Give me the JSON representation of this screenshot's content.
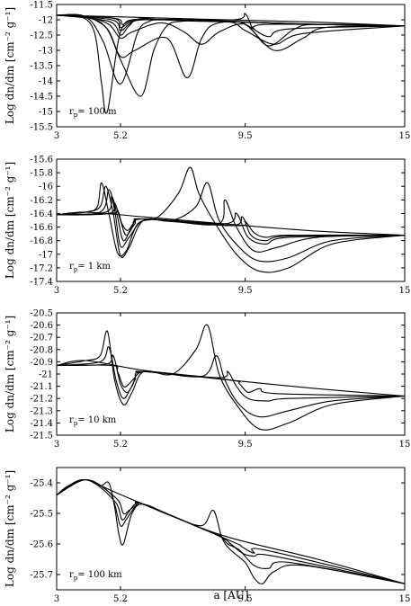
{
  "figure": {
    "xlabel": "a [AU]"
  },
  "chart_data": [
    {
      "type": "line",
      "panel": "rp-100m",
      "ylabel": "Log dn/dm [cm⁻² g⁻¹]",
      "annotation": "r_p= 100 m",
      "annotation_main": "r",
      "annotation_sub": "p",
      "annotation_rest": "= 100 m",
      "xscale": "linear",
      "xlim": [
        3,
        15
      ],
      "xticks": [
        3,
        5.2,
        9.5,
        15
      ],
      "xtick_labels": [
        "3",
        "5.2",
        "9.5",
        "15"
      ],
      "ylim": [
        -15.5,
        -11.5
      ],
      "yticks": [
        -11.5,
        -12,
        -12.5,
        -13,
        -13.5,
        -14,
        -14.5,
        -15,
        -15.5
      ],
      "ytick_labels": [
        "-11.5",
        "-12",
        "-12.5",
        "-13",
        "-13.5",
        "-14",
        "-14.5",
        "-15",
        "-15.5"
      ],
      "baseline": [
        [
          3,
          -11.85
        ],
        [
          5,
          -11.9
        ],
        [
          8,
          -11.98
        ],
        [
          12,
          -12.08
        ],
        [
          15,
          -12.2
        ]
      ],
      "series": [
        {
          "x": [
            3,
            3.8,
            4.3,
            4.55,
            4.75,
            5.2,
            5.8,
            6.6,
            7.3,
            8.6,
            10.3,
            12,
            15
          ],
          "y": [
            -11.85,
            -11.88,
            -12.4,
            -14.1,
            -15.0,
            -12.4,
            -11.98,
            -12.0,
            -12.02,
            -12.05,
            -12.1,
            -12.15,
            -12.2
          ]
        },
        {
          "x": [
            3,
            4.0,
            4.6,
            5.2,
            5.8,
            6.2,
            6.6,
            7.3,
            8.6,
            10.3,
            12,
            15
          ],
          "y": [
            -11.85,
            -11.9,
            -12.7,
            -14.1,
            -12.4,
            -12.05,
            -12.0,
            -12.02,
            -12.05,
            -12.1,
            -12.15,
            -12.2
          ]
        },
        {
          "x": [
            3,
            4.0,
            4.7,
            5.2,
            5.9,
            6.35,
            6.8,
            7.3,
            8.0,
            10.3,
            12,
            15
          ],
          "y": [
            -11.85,
            -11.9,
            -12.25,
            -13.3,
            -14.5,
            -13.0,
            -12.2,
            -12.05,
            -12.05,
            -12.1,
            -12.15,
            -12.2
          ]
        },
        {
          "x": [
            3,
            4.0,
            4.75,
            5.2,
            5.7,
            6.8,
            7.5,
            8.0,
            8.6,
            10.3,
            12,
            15
          ],
          "y": [
            -11.85,
            -11.9,
            -12.3,
            -13.2,
            -13.0,
            -12.6,
            -13.9,
            -12.6,
            -12.1,
            -12.1,
            -12.15,
            -12.2
          ]
        },
        {
          "x": [
            3,
            4.0,
            4.8,
            5.2,
            5.6,
            6.6,
            7.4,
            8.0,
            8.6,
            9.5,
            10.3,
            11.2,
            12,
            15
          ],
          "y": [
            -11.85,
            -11.9,
            -12.15,
            -12.6,
            -12.4,
            -12.1,
            -12.4,
            -12.8,
            -12.4,
            -12.15,
            -12.85,
            -12.3,
            -12.15,
            -12.2
          ]
        },
        {
          "x": [
            3,
            4.8,
            5.2,
            5.5,
            6.0,
            8.6,
            9.5,
            10.5,
            11.5,
            12.3,
            15
          ],
          "y": [
            -11.85,
            -12.05,
            -12.5,
            -12.2,
            -12.0,
            -12.05,
            -12.15,
            -13.0,
            -12.6,
            -12.25,
            -12.2
          ]
        },
        {
          "x": [
            3,
            4.9,
            5.2,
            5.5,
            6.0,
            8.8,
            9.5,
            10.5,
            11.5,
            15
          ],
          "y": [
            -11.85,
            -12.0,
            -12.35,
            -12.15,
            -12.0,
            -12.05,
            -12.35,
            -12.8,
            -12.45,
            -12.2
          ]
        },
        {
          "x": [
            3,
            4.95,
            5.2,
            5.5,
            6.0,
            9.0,
            9.6,
            10.3,
            11.0,
            15
          ],
          "y": [
            -11.85,
            -11.95,
            -12.25,
            -12.1,
            -12.0,
            -12.05,
            -12.2,
            -12.55,
            -12.3,
            -12.2
          ]
        },
        {
          "x": [
            3,
            5.0,
            5.25,
            5.5,
            6.0,
            9.1,
            9.5,
            9.8,
            10.3,
            15
          ],
          "y": [
            -11.85,
            -11.95,
            -12.15,
            -12.05,
            -11.98,
            -12.0,
            -11.8,
            -12.3,
            -12.15,
            -12.2
          ]
        }
      ]
    },
    {
      "type": "line",
      "panel": "rp-1km",
      "ylabel": "Log dn/dm [cm⁻² g⁻¹]",
      "annotation": "r_p= 1 km",
      "annotation_main": "r",
      "annotation_sub": "p",
      "annotation_rest": "= 1 km",
      "xscale": "linear",
      "xlim": [
        3,
        15
      ],
      "xticks": [
        3,
        5.2,
        9.5,
        15
      ],
      "xtick_labels": [
        "3",
        "5.2",
        "9.5",
        "15"
      ],
      "ylim": [
        -17.4,
        -15.6
      ],
      "yticks": [
        -15.6,
        -15.8,
        -16,
        -16.2,
        -16.4,
        -16.6,
        -16.8,
        -17,
        -17.2,
        -17.4
      ],
      "ytick_labels": [
        "-15.6",
        "-15.8",
        "-16",
        "-16.2",
        "-16.4",
        "-16.6",
        "-16.8",
        "-17",
        "-17.2",
        "-17.4"
      ],
      "baseline": [
        [
          3,
          -16.42
        ],
        [
          4,
          -16.38
        ],
        [
          6,
          -16.45
        ],
        [
          9,
          -16.56
        ],
        [
          12,
          -16.66
        ],
        [
          15,
          -16.72
        ]
      ],
      "series": [
        {
          "x": [
            3,
            4.0,
            4.4,
            4.55,
            4.8,
            5.1,
            5.4,
            5.8,
            6.5,
            7.2,
            7.6,
            7.9,
            8.4,
            9.2,
            10.0,
            11.0,
            12.5,
            15
          ],
          "y": [
            -16.42,
            -16.38,
            -16.3,
            -15.95,
            -16.4,
            -16.98,
            -16.95,
            -16.55,
            -16.45,
            -16.1,
            -15.72,
            -16.1,
            -16.5,
            -17.0,
            -17.25,
            -17.2,
            -16.85,
            -16.72
          ]
        },
        {
          "x": [
            3,
            4.0,
            4.5,
            4.7,
            4.95,
            5.2,
            5.5,
            6.0,
            7.0,
            7.8,
            8.2,
            8.6,
            9.3,
            10.0,
            11.0,
            12.5,
            15
          ],
          "y": [
            -16.42,
            -16.38,
            -16.3,
            -16.0,
            -16.4,
            -17.02,
            -16.9,
            -16.5,
            -16.5,
            -16.3,
            -15.95,
            -16.5,
            -16.9,
            -17.1,
            -17.05,
            -16.8,
            -16.72
          ]
        },
        {
          "x": [
            3,
            4.5,
            4.8,
            5.0,
            5.2,
            5.5,
            6.0,
            7.0,
            8.6,
            8.8,
            9.2,
            9.8,
            10.6,
            12.0,
            15
          ],
          "y": [
            -16.42,
            -16.38,
            -16.05,
            -16.35,
            -16.88,
            -16.75,
            -16.5,
            -16.52,
            -16.55,
            -16.2,
            -16.6,
            -16.95,
            -16.9,
            -16.75,
            -16.72
          ]
        },
        {
          "x": [
            3,
            4.7,
            4.9,
            5.1,
            5.3,
            5.6,
            6.0,
            8.8,
            9.2,
            9.6,
            10.2,
            11.0,
            15
          ],
          "y": [
            -16.42,
            -16.38,
            -16.15,
            -16.45,
            -16.8,
            -16.6,
            -16.48,
            -16.55,
            -16.4,
            -16.75,
            -16.85,
            -16.75,
            -16.72
          ]
        },
        {
          "x": [
            3,
            4.8,
            5.0,
            5.2,
            5.4,
            5.7,
            6.0,
            9.0,
            9.4,
            9.7,
            10.2,
            11.0,
            15
          ],
          "y": [
            -16.42,
            -16.4,
            -16.25,
            -16.5,
            -16.72,
            -16.55,
            -16.48,
            -16.58,
            -16.45,
            -16.72,
            -16.8,
            -16.73,
            -16.72
          ]
        },
        {
          "x": [
            3,
            4.9,
            5.1,
            5.25,
            5.45,
            5.7,
            6.0,
            9.2,
            9.5,
            9.8,
            10.2,
            11.0,
            15
          ],
          "y": [
            -16.42,
            -16.4,
            -16.35,
            -16.55,
            -16.65,
            -16.52,
            -16.48,
            -16.58,
            -16.52,
            -16.68,
            -16.75,
            -16.72,
            -16.72
          ]
        }
      ]
    },
    {
      "type": "line",
      "panel": "rp-10km",
      "ylabel": "Log dn/dm [cm⁻² g⁻¹]",
      "annotation": "r_p= 10 km",
      "annotation_main": "r",
      "annotation_sub": "p",
      "annotation_rest": "= 10 km",
      "xscale": "linear",
      "xlim": [
        3,
        15
      ],
      "xticks": [
        3,
        5.2,
        9.5,
        15
      ],
      "xtick_labels": [
        "3",
        "5.2",
        "9.5",
        "15"
      ],
      "ylim": [
        -21.5,
        -20.5
      ],
      "yticks": [
        -20.5,
        -20.6,
        -20.7,
        -20.8,
        -20.9,
        -21,
        -21.1,
        -21.2,
        -21.3,
        -21.4,
        -21.5
      ],
      "ytick_labels": [
        "-20.5",
        "-20.6",
        "-20.7",
        "-20.8",
        "-20.9",
        "-21",
        "-21.1",
        "-21.2",
        "-21.3",
        "-21.4",
        "-21.5"
      ],
      "baseline": [
        [
          3,
          -20.93
        ],
        [
          4,
          -20.89
        ],
        [
          6,
          -20.97
        ],
        [
          9,
          -21.05
        ],
        [
          12,
          -21.12
        ],
        [
          15,
          -21.18
        ]
      ],
      "series": [
        {
          "x": [
            3,
            4.0,
            4.5,
            4.75,
            5.0,
            5.3,
            5.6,
            6.0,
            7.0,
            7.8,
            8.2,
            8.6,
            9.2,
            10.0,
            11.0,
            12.5,
            15
          ],
          "y": [
            -20.93,
            -20.89,
            -20.85,
            -20.65,
            -21.05,
            -21.25,
            -21.15,
            -20.98,
            -21.0,
            -20.8,
            -20.6,
            -21.0,
            -21.25,
            -21.45,
            -21.4,
            -21.25,
            -21.18
          ]
        },
        {
          "x": [
            3,
            4.5,
            4.8,
            5.05,
            5.3,
            5.6,
            6.0,
            8.0,
            8.5,
            8.8,
            9.3,
            10.0,
            11.0,
            12.5,
            15
          ],
          "y": [
            -20.93,
            -20.9,
            -20.78,
            -21.05,
            -21.2,
            -21.1,
            -20.98,
            -21.02,
            -20.85,
            -21.05,
            -21.25,
            -21.35,
            -21.3,
            -21.22,
            -21.18
          ]
        },
        {
          "x": [
            3,
            4.7,
            4.95,
            5.2,
            5.45,
            5.7,
            6.0,
            8.6,
            8.9,
            9.2,
            9.6,
            10.3,
            11.0,
            15
          ],
          "y": [
            -20.93,
            -20.92,
            -20.85,
            -21.08,
            -21.15,
            -21.05,
            -20.98,
            -21.03,
            -20.98,
            -21.1,
            -21.2,
            -21.22,
            -21.2,
            -21.18
          ]
        },
        {
          "x": [
            3,
            4.9,
            5.1,
            5.3,
            5.5,
            5.8,
            6.0,
            9.0,
            9.3,
            9.6,
            10.0,
            10.6,
            15
          ],
          "y": [
            -20.93,
            -20.93,
            -20.98,
            -21.1,
            -21.08,
            -21.0,
            -20.98,
            -21.05,
            -21.08,
            -21.15,
            -21.12,
            -21.16,
            -21.18
          ]
        }
      ]
    },
    {
      "type": "line",
      "panel": "rp-100km",
      "ylabel": "Log dn/dm [cm⁻² g⁻¹]",
      "annotation": "r_p= 100 km",
      "annotation_main": "r",
      "annotation_sub": "p",
      "annotation_rest": "= 100 km",
      "xscale": "linear",
      "xlim": [
        3,
        15
      ],
      "xticks": [
        3,
        5.2,
        9.5,
        15
      ],
      "xtick_labels": [
        "3",
        "5.2",
        "9.5",
        "15"
      ],
      "ylim": [
        -25.75,
        -25.35
      ],
      "yticks": [
        -25.4,
        -25.5,
        -25.6,
        -25.7
      ],
      "ytick_labels": [
        "-25.4",
        "-25.5",
        "-25.6",
        "-25.7"
      ],
      "baseline": [
        [
          3,
          -25.44
        ],
        [
          3.4,
          -25.41
        ],
        [
          4,
          -25.39
        ],
        [
          5,
          -25.43
        ],
        [
          7,
          -25.51
        ],
        [
          9,
          -25.58
        ],
        [
          12,
          -25.65
        ],
        [
          15,
          -25.73
        ]
      ],
      "series": [
        {
          "x": [
            3,
            3.4,
            4.0,
            4.5,
            4.8,
            5.0,
            5.15,
            5.3,
            5.6,
            6.0,
            7.0,
            8.0,
            8.4,
            8.7,
            9.0,
            9.5,
            9.8,
            10.1,
            10.5,
            11.5,
            15
          ],
          "y": [
            -25.44,
            -25.41,
            -25.39,
            -25.41,
            -25.4,
            -25.48,
            -25.57,
            -25.6,
            -25.5,
            -25.47,
            -25.51,
            -25.54,
            -25.49,
            -25.58,
            -25.62,
            -25.66,
            -25.71,
            -25.73,
            -25.69,
            -25.67,
            -25.73
          ]
        },
        {
          "x": [
            3,
            4.0,
            4.8,
            5.0,
            5.2,
            5.4,
            5.7,
            6.0,
            8.0,
            8.6,
            8.9,
            9.3,
            9.8,
            10.3,
            11.0,
            15
          ],
          "y": [
            -25.44,
            -25.39,
            -25.43,
            -25.47,
            -25.54,
            -25.52,
            -25.48,
            -25.47,
            -25.55,
            -25.57,
            -25.6,
            -25.62,
            -25.67,
            -25.68,
            -25.66,
            -25.73
          ]
        },
        {
          "x": [
            3,
            4.0,
            5.0,
            5.25,
            5.45,
            5.7,
            6.0,
            8.5,
            9.0,
            9.4,
            9.8,
            10.5,
            15
          ],
          "y": [
            -25.44,
            -25.39,
            -25.46,
            -25.52,
            -25.5,
            -25.47,
            -25.47,
            -25.57,
            -25.6,
            -25.63,
            -25.64,
            -25.64,
            -25.73
          ]
        },
        {
          "x": [
            3,
            4.0,
            5.05,
            5.3,
            5.5,
            5.8,
            6.0,
            9.0,
            9.4,
            9.8,
            10.2,
            15
          ],
          "y": [
            -25.44,
            -25.39,
            -25.45,
            -25.5,
            -25.49,
            -25.47,
            -25.47,
            -25.59,
            -25.61,
            -25.63,
            -25.62,
            -25.73
          ]
        }
      ]
    }
  ]
}
